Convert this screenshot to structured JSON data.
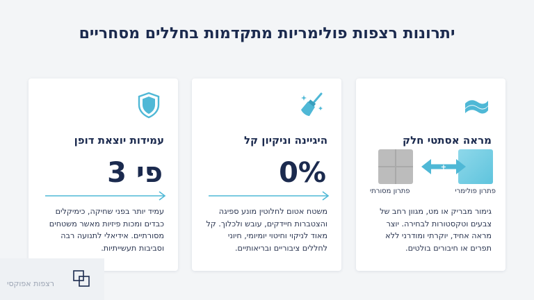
{
  "page": {
    "title": "יתרונות רצפות פולימריות מתקדמות בחללים מסחריים"
  },
  "cards": [
    {
      "icon": "shield-icon",
      "heading": "עמידות יוצאת דופן",
      "stat": "פי 3",
      "body": "עמיד יותר בפני שחיקה, כימיקלים כבדים ומכות פיזיות מאשר משטחים מסורתיים. אידיאלי לתנועה רבה וסביבות תעשייתיות."
    },
    {
      "icon": "broom-icon",
      "heading": "היגיינה וניקיון קל",
      "stat": "0%",
      "body": "משטח אטום לחלוטין מונע ספיגה והצטברות חיידקים, עובש ולכלוך. קל מאוד לניקוי וחיטוי יומיומי, חיוני לחללים ציבוריים ובריאותיים."
    },
    {
      "icon": "wave-icon",
      "heading": "מראה אסתטי חלק",
      "compare": {
        "poly_label": "פתרון פולימרי",
        "trad_label": "פתרון מסורתי",
        "vs_symbol": "+"
      },
      "body": "גימור מבריק או מט, מגוון רחב של צבעים וטקסטורות לבחירה. יוצר מראה אחיד, יוקרתי ומודרני ללא תפרים או חיבורים בולטים."
    }
  ],
  "watermark": {
    "text": "רצפות אפוקסי"
  },
  "colors": {
    "navy": "#1b2a4e",
    "accent": "#4fb8d6",
    "card": "#ffffff",
    "background": "#f3f5f7"
  }
}
